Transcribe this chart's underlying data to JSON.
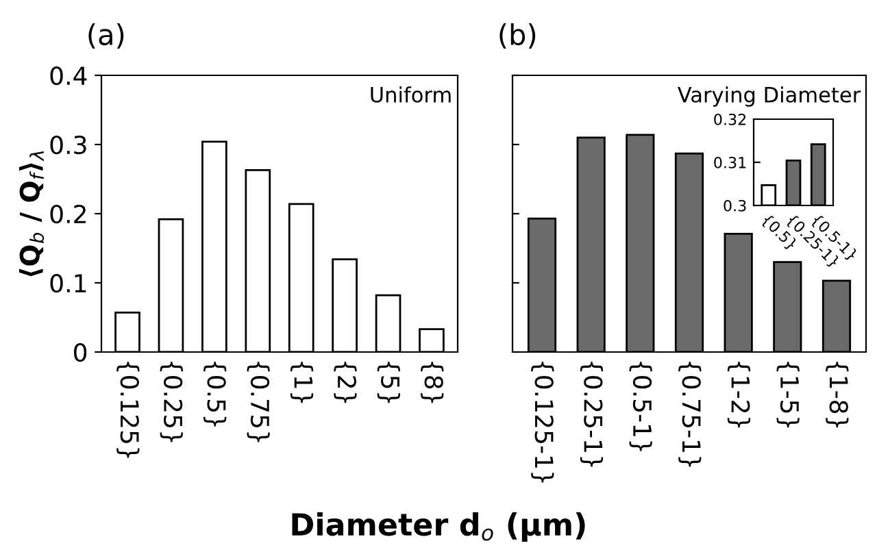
{
  "chart_data": [
    {
      "type": "bar",
      "title": "(a)",
      "ylabel": "⟨Q$_{b}$ / Q$_{f}$⟩$_{λ}$",
      "xlabel": "Diameter d$_{o}$ (μm)",
      "annotations": [
        "Uniform"
      ],
      "categories": [
        "{0.125}",
        "{0.25}",
        "{0.5}",
        "{0.75}",
        "{1}",
        "{2}",
        "{5}",
        "{8}"
      ],
      "values": [
        0.057,
        0.192,
        0.304,
        0.263,
        0.214,
        0.134,
        0.082,
        0.033
      ],
      "color": "#ffffff",
      "ylim": [
        0,
        0.4
      ],
      "yticks": [
        0,
        0.1,
        0.2,
        0.3,
        0.4
      ]
    },
    {
      "type": "bar",
      "title": "(b)",
      "annotations": [
        "Varying Diameter"
      ],
      "categories": [
        "{0.125-1}",
        "{0.25-1}",
        "{0.5-1}",
        "{0.75-1}",
        "{1-2}",
        "{1-5}",
        "{1-8}"
      ],
      "values": [
        0.193,
        0.31,
        0.314,
        0.287,
        0.171,
        0.13,
        0.103
      ],
      "color": "#6a6a6a",
      "ylim": [
        0,
        0.4
      ],
      "yticks": [
        0,
        0.1,
        0.2,
        0.3,
        0.4
      ],
      "tick_labels": "x"
    },
    {
      "type": "bar",
      "categories": [
        "{0.5}",
        "{0.25-1}",
        "{0.5-1}"
      ],
      "values": [
        0.3047,
        0.3104,
        0.3142
      ],
      "colors": [
        "#ffffff",
        "#6a6a6a",
        "#6a6a6a"
      ],
      "ylim": [
        0.3,
        0.32
      ],
      "yticks": [
        0.3,
        0.31,
        0.32
      ]
    }
  ]
}
